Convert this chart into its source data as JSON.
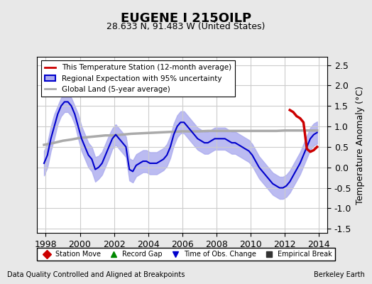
{
  "title": "EUGENE I 215OILP",
  "subtitle": "28.633 N, 91.483 W (United States)",
  "xlabel_bottom": "Data Quality Controlled and Aligned at Breakpoints",
  "xlabel_right": "Berkeley Earth",
  "ylabel": "Temperature Anomaly (°C)",
  "xlim": [
    1997.5,
    2014.5
  ],
  "ylim": [
    -1.6,
    2.7
  ],
  "yticks": [
    -1.5,
    -1.0,
    -0.5,
    0.0,
    0.5,
    1.0,
    1.5,
    2.0,
    2.5
  ],
  "xticks": [
    1998,
    2000,
    2002,
    2004,
    2006,
    2008,
    2010,
    2012,
    2014
  ],
  "bg_color": "#e8e8e8",
  "plot_bg_color": "#ffffff",
  "grid_color": "#cccccc",
  "blue_line_color": "#0000cc",
  "blue_fill_color": "#aaaaee",
  "red_line_color": "#cc0000",
  "gray_line_color": "#aaaaaa",
  "legend_items": [
    {
      "label": "This Temperature Station (12-month average)",
      "color": "#cc0000",
      "lw": 2,
      "type": "line"
    },
    {
      "label": "Regional Expectation with 95% uncertainty",
      "color": "#0000cc",
      "lw": 2,
      "type": "fill"
    },
    {
      "label": "Global Land (5-year average)",
      "color": "#aaaaaa",
      "lw": 2,
      "type": "line"
    }
  ],
  "bottom_legend": [
    {
      "label": "Station Move",
      "color": "#cc0000",
      "marker": "D",
      "type": "marker"
    },
    {
      "label": "Record Gap",
      "color": "#008800",
      "marker": "^",
      "type": "marker"
    },
    {
      "label": "Time of Obs. Change",
      "color": "#0000cc",
      "marker": "v",
      "type": "marker"
    },
    {
      "label": "Empirical Break",
      "color": "#333333",
      "marker": "s",
      "type": "marker"
    }
  ],
  "blue_x": [
    1997.9,
    1998.1,
    1998.3,
    1998.5,
    1998.7,
    1998.9,
    1999.1,
    1999.3,
    1999.5,
    1999.7,
    1999.9,
    2000.1,
    2000.3,
    2000.5,
    2000.7,
    2000.9,
    2001.1,
    2001.3,
    2001.5,
    2001.7,
    2001.9,
    2002.1,
    2002.3,
    2002.5,
    2002.7,
    2002.9,
    2003.1,
    2003.3,
    2003.5,
    2003.7,
    2003.9,
    2004.1,
    2004.3,
    2004.5,
    2004.7,
    2004.9,
    2005.1,
    2005.3,
    2005.5,
    2005.7,
    2005.9,
    2006.1,
    2006.3,
    2006.5,
    2006.7,
    2006.9,
    2007.1,
    2007.3,
    2007.5,
    2007.7,
    2007.9,
    2008.1,
    2008.3,
    2008.5,
    2008.7,
    2008.9,
    2009.1,
    2009.3,
    2009.5,
    2009.7,
    2009.9,
    2010.1,
    2010.3,
    2010.5,
    2010.7,
    2010.9,
    2011.1,
    2011.3,
    2011.5,
    2011.7,
    2011.9,
    2012.1,
    2012.3,
    2012.5,
    2012.7,
    2012.9,
    2013.1,
    2013.3,
    2013.5,
    2013.7,
    2013.9
  ],
  "blue_y": [
    0.1,
    0.3,
    0.7,
    1.0,
    1.3,
    1.5,
    1.6,
    1.6,
    1.5,
    1.3,
    1.0,
    0.7,
    0.5,
    0.3,
    0.2,
    -0.05,
    0.0,
    0.1,
    0.3,
    0.5,
    0.7,
    0.8,
    0.7,
    0.6,
    0.5,
    -0.05,
    -0.1,
    0.05,
    0.1,
    0.15,
    0.15,
    0.1,
    0.1,
    0.1,
    0.15,
    0.2,
    0.3,
    0.5,
    0.8,
    1.0,
    1.1,
    1.1,
    1.0,
    0.9,
    0.8,
    0.7,
    0.65,
    0.6,
    0.6,
    0.65,
    0.7,
    0.7,
    0.7,
    0.7,
    0.65,
    0.6,
    0.6,
    0.55,
    0.5,
    0.45,
    0.4,
    0.3,
    0.15,
    0.0,
    -0.1,
    -0.2,
    -0.3,
    -0.4,
    -0.45,
    -0.5,
    -0.5,
    -0.45,
    -0.35,
    -0.2,
    -0.05,
    0.1,
    0.3,
    0.5,
    0.7,
    0.8,
    0.85
  ],
  "blue_y_upper": [
    0.4,
    0.6,
    1.0,
    1.3,
    1.5,
    1.7,
    1.8,
    1.8,
    1.7,
    1.5,
    1.3,
    1.0,
    0.8,
    0.6,
    0.5,
    0.25,
    0.28,
    0.38,
    0.58,
    0.78,
    0.95,
    1.05,
    0.95,
    0.85,
    0.75,
    0.22,
    0.17,
    0.32,
    0.37,
    0.42,
    0.42,
    0.37,
    0.37,
    0.37,
    0.42,
    0.47,
    0.57,
    0.77,
    1.07,
    1.27,
    1.37,
    1.37,
    1.27,
    1.17,
    1.07,
    0.97,
    0.92,
    0.87,
    0.87,
    0.92,
    0.97,
    0.97,
    0.97,
    0.97,
    0.92,
    0.87,
    0.87,
    0.82,
    0.77,
    0.72,
    0.67,
    0.57,
    0.42,
    0.27,
    0.17,
    0.07,
    -0.03,
    -0.13,
    -0.18,
    -0.23,
    -0.23,
    -0.18,
    -0.08,
    0.07,
    0.22,
    0.37,
    0.57,
    0.77,
    0.97,
    1.07,
    1.12
  ],
  "blue_y_lower": [
    -0.2,
    0.0,
    0.4,
    0.7,
    1.05,
    1.25,
    1.35,
    1.35,
    1.25,
    1.05,
    0.7,
    0.4,
    0.2,
    0.0,
    -0.1,
    -0.35,
    -0.28,
    -0.18,
    0.02,
    0.22,
    0.45,
    0.55,
    0.45,
    0.35,
    0.25,
    -0.32,
    -0.37,
    -0.22,
    -0.17,
    -0.12,
    -0.12,
    -0.17,
    -0.17,
    -0.17,
    -0.12,
    -0.07,
    0.03,
    0.23,
    0.53,
    0.73,
    0.83,
    0.83,
    0.73,
    0.63,
    0.53,
    0.43,
    0.38,
    0.33,
    0.33,
    0.38,
    0.43,
    0.43,
    0.43,
    0.43,
    0.38,
    0.33,
    0.33,
    0.28,
    0.23,
    0.18,
    0.13,
    0.03,
    -0.12,
    -0.27,
    -0.37,
    -0.47,
    -0.57,
    -0.67,
    -0.72,
    -0.77,
    -0.77,
    -0.72,
    -0.62,
    -0.47,
    -0.32,
    -0.17,
    0.03,
    0.23,
    0.43,
    0.53,
    0.58
  ],
  "gray_x": [
    1997.9,
    1998.5,
    1999.0,
    1999.5,
    2000.0,
    2000.5,
    2001.0,
    2001.5,
    2002.0,
    2002.5,
    2003.0,
    2003.5,
    2004.0,
    2004.5,
    2005.0,
    2005.5,
    2006.0,
    2006.5,
    2007.0,
    2007.5,
    2008.0,
    2008.5,
    2009.0,
    2009.5,
    2010.0,
    2010.5,
    2011.0,
    2011.5,
    2012.0,
    2012.5,
    2013.0,
    2013.5,
    2013.9
  ],
  "gray_y": [
    0.55,
    0.6,
    0.65,
    0.68,
    0.72,
    0.74,
    0.76,
    0.78,
    0.78,
    0.8,
    0.82,
    0.83,
    0.84,
    0.85,
    0.86,
    0.87,
    0.88,
    0.88,
    0.88,
    0.89,
    0.89,
    0.89,
    0.89,
    0.89,
    0.89,
    0.89,
    0.89,
    0.89,
    0.9,
    0.9,
    0.9,
    0.9,
    0.9
  ],
  "red_x": [
    2012.3,
    2012.5,
    2012.7,
    2012.9,
    2013.1,
    2013.3,
    2013.5,
    2013.7,
    2013.9
  ],
  "red_y": [
    1.4,
    1.35,
    1.25,
    1.2,
    1.1,
    0.45,
    0.38,
    0.42,
    0.5
  ]
}
